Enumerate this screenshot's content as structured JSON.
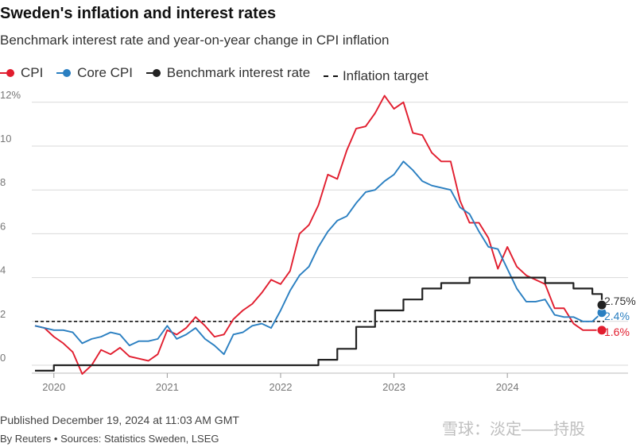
{
  "title": "Sweden's inflation and interest rates",
  "subtitle": "Benchmark interest rate and year-on-year change in CPI inflation",
  "legend": {
    "cpi": "CPI",
    "core_cpi": "Core CPI",
    "benchmark": "Benchmark interest rate",
    "target": "Inflation target"
  },
  "colors": {
    "cpi": "#e11d2e",
    "core_cpi": "#2a7fc1",
    "benchmark": "#222222",
    "target": "#111111"
  },
  "footer": {
    "published": "Published December 19, 2024 at 11:03 AM GMT",
    "sources": "By Reuters • Sources: Statistics Sweden, LSEG"
  },
  "watermark": "雪球：淡定——持股",
  "chart_data": {
    "type": "line",
    "title": "Sweden's inflation and interest rates",
    "subtitle": "Benchmark interest rate and year-on-year change in CPI inflation",
    "xlabel": "",
    "ylabel": "",
    "x_start": "2019-11",
    "x_end": "2024-11",
    "x_ticks": [
      "2020",
      "2021",
      "2022",
      "2023",
      "2024"
    ],
    "y_ticks": [
      "0",
      "2",
      "4",
      "6",
      "8",
      "10",
      "12%"
    ],
    "ylim": [
      0,
      12
    ],
    "grid": true,
    "inflation_target": 2,
    "series": [
      {
        "name": "CPI",
        "key": "cpi",
        "x": [
          "2019-11",
          "2019-12",
          "2020-01",
          "2020-02",
          "2020-03",
          "2020-04",
          "2020-05",
          "2020-06",
          "2020-07",
          "2020-08",
          "2020-09",
          "2020-10",
          "2020-11",
          "2020-12",
          "2021-01",
          "2021-02",
          "2021-03",
          "2021-04",
          "2021-05",
          "2021-06",
          "2021-07",
          "2021-08",
          "2021-09",
          "2021-10",
          "2021-11",
          "2021-12",
          "2022-01",
          "2022-02",
          "2022-03",
          "2022-04",
          "2022-05",
          "2022-06",
          "2022-07",
          "2022-08",
          "2022-09",
          "2022-10",
          "2022-11",
          "2022-12",
          "2023-01",
          "2023-02",
          "2023-03",
          "2023-04",
          "2023-05",
          "2023-06",
          "2023-07",
          "2023-08",
          "2023-09",
          "2023-10",
          "2023-11",
          "2023-12",
          "2024-01",
          "2024-02",
          "2024-03",
          "2024-04",
          "2024-05",
          "2024-06",
          "2024-07",
          "2024-08",
          "2024-09",
          "2024-10",
          "2024-11"
        ],
        "values": [
          1.8,
          1.7,
          1.3,
          1.0,
          0.6,
          -0.4,
          0.0,
          0.7,
          0.5,
          0.8,
          0.4,
          0.3,
          0.2,
          0.5,
          1.6,
          1.4,
          1.7,
          2.2,
          1.8,
          1.3,
          1.4,
          2.1,
          2.5,
          2.8,
          3.3,
          3.9,
          3.7,
          4.3,
          6.0,
          6.4,
          7.3,
          8.7,
          8.5,
          9.8,
          10.8,
          10.9,
          11.5,
          12.3,
          11.7,
          12.0,
          10.6,
          10.5,
          9.7,
          9.3,
          9.3,
          7.5,
          6.5,
          6.5,
          5.8,
          4.4,
          5.4,
          4.5,
          4.1,
          3.9,
          3.7,
          2.6,
          2.6,
          1.9,
          1.6,
          1.6,
          1.6
        ],
        "end_label": "1.6%"
      },
      {
        "name": "Core CPI",
        "key": "core_cpi",
        "x": [
          "2019-11",
          "2019-12",
          "2020-01",
          "2020-02",
          "2020-03",
          "2020-04",
          "2020-05",
          "2020-06",
          "2020-07",
          "2020-08",
          "2020-09",
          "2020-10",
          "2020-11",
          "2020-12",
          "2021-01",
          "2021-02",
          "2021-03",
          "2021-04",
          "2021-05",
          "2021-06",
          "2021-07",
          "2021-08",
          "2021-09",
          "2021-10",
          "2021-11",
          "2021-12",
          "2022-01",
          "2022-02",
          "2022-03",
          "2022-04",
          "2022-05",
          "2022-06",
          "2022-07",
          "2022-08",
          "2022-09",
          "2022-10",
          "2022-11",
          "2022-12",
          "2023-01",
          "2023-02",
          "2023-03",
          "2023-04",
          "2023-05",
          "2023-06",
          "2023-07",
          "2023-08",
          "2023-09",
          "2023-10",
          "2023-11",
          "2023-12",
          "2024-01",
          "2024-02",
          "2024-03",
          "2024-04",
          "2024-05",
          "2024-06",
          "2024-07",
          "2024-08",
          "2024-09",
          "2024-10",
          "2024-11"
        ],
        "values": [
          1.8,
          1.7,
          1.6,
          1.6,
          1.5,
          1.0,
          1.2,
          1.3,
          1.5,
          1.4,
          0.9,
          1.1,
          1.1,
          1.2,
          1.8,
          1.2,
          1.4,
          1.7,
          1.2,
          0.9,
          0.5,
          1.4,
          1.5,
          1.8,
          1.9,
          1.7,
          2.5,
          3.4,
          4.1,
          4.5,
          5.4,
          6.1,
          6.6,
          6.8,
          7.4,
          7.9,
          8.0,
          8.4,
          8.7,
          9.3,
          8.9,
          8.4,
          8.2,
          8.1,
          8.0,
          7.2,
          6.9,
          6.1,
          5.4,
          5.3,
          4.4,
          3.5,
          2.9,
          2.9,
          3.0,
          2.3,
          2.2,
          2.2,
          2.0,
          2.0,
          2.4
        ],
        "end_label": "2.4%"
      },
      {
        "name": "Benchmark interest rate",
        "key": "benchmark",
        "step": true,
        "x": [
          "2019-11",
          "2020-01",
          "2022-05",
          "2022-07",
          "2022-09",
          "2022-11",
          "2023-02",
          "2023-04",
          "2023-06",
          "2023-09",
          "2024-05",
          "2024-08",
          "2024-10",
          "2024-11"
        ],
        "values": [
          -0.25,
          0,
          0.25,
          0.75,
          1.75,
          2.5,
          3.0,
          3.5,
          3.75,
          4.0,
          3.75,
          3.5,
          3.25,
          2.75
        ],
        "x_end": "2024-11",
        "end_label": "2.75%"
      }
    ]
  }
}
